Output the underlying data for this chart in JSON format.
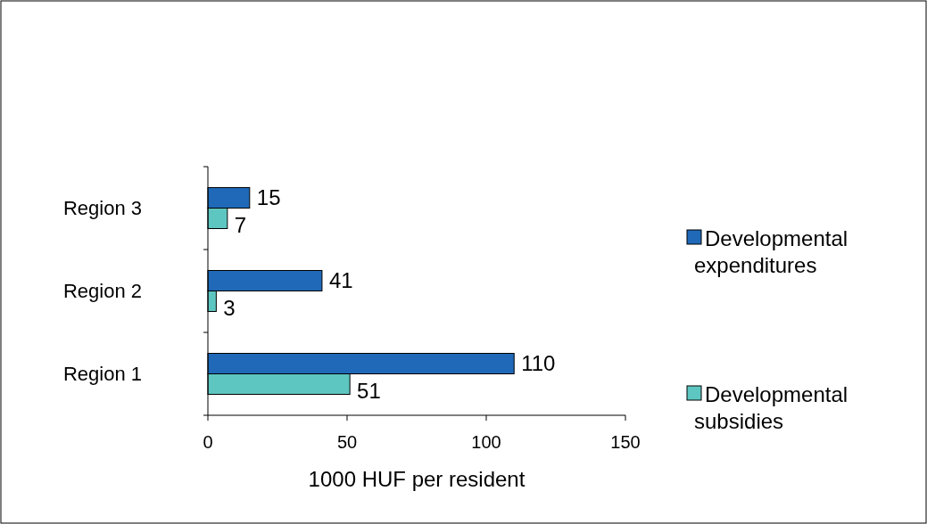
{
  "chart_data": {
    "type": "bar",
    "orientation": "horizontal",
    "xlabel": "1000 HUF per resident",
    "categories": [
      "Region 3",
      "Region 2",
      "Region 1"
    ],
    "series": [
      {
        "name": "Developmental expenditures",
        "color": "#1f69b8",
        "values": [
          15,
          41,
          110
        ]
      },
      {
        "name": "Developmental subsidies",
        "color": "#5ec6c1",
        "values": [
          7,
          3,
          51
        ]
      }
    ],
    "xlim": [
      0,
      150
    ],
    "xticks": [
      0,
      50,
      100,
      150
    ],
    "grid": false,
    "legend": "right",
    "data_labels": true
  }
}
